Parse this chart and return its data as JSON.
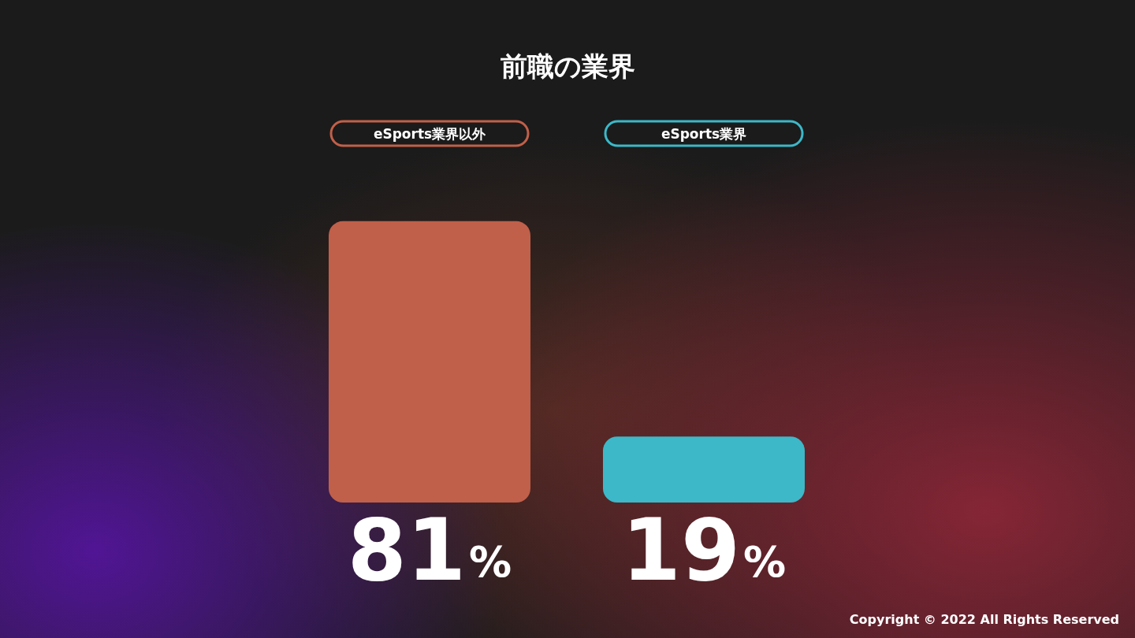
{
  "chart_data": {
    "type": "bar",
    "title": "前職の業界",
    "categories": [
      "eSports業界以外",
      "eSports業界"
    ],
    "values": [
      81,
      19
    ],
    "colors": [
      "#c0604a",
      "#3cb8c8"
    ],
    "value_labels": [
      "81%",
      "19%"
    ],
    "annotations": [
      "Copyright © 2022 All Rights Reserved"
    ]
  }
}
